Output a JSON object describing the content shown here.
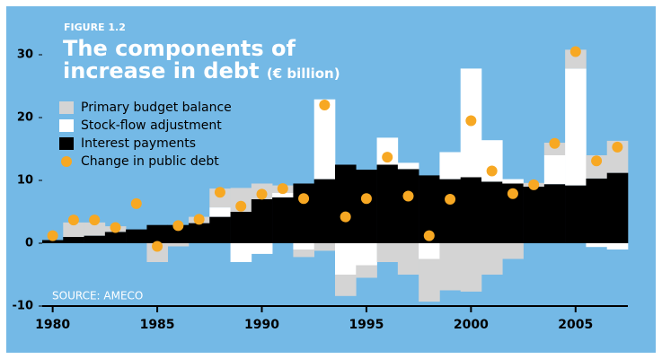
{
  "chart_data": {
    "type": "bar",
    "stacked": true,
    "figure_label": "FIGURE 1.2",
    "title": "The components of increase in debt",
    "unit": "(€ billion)",
    "source": "SOURCE: AMECO",
    "x": [
      1980,
      1981,
      1982,
      1983,
      1984,
      1985,
      1986,
      1987,
      1988,
      1989,
      1990,
      1991,
      1992,
      1993,
      1994,
      1995,
      1996,
      1997,
      1998,
      1999,
      2000,
      2001,
      2002,
      2003,
      2004,
      2005,
      2006,
      2007
    ],
    "xlim": [
      1979.5,
      2007.5
    ],
    "xticks": [
      1980,
      1985,
      1990,
      1995,
      2000,
      2005
    ],
    "ylim": [
      -10,
      33
    ],
    "yticks": [
      -10,
      0,
      10,
      20,
      30
    ],
    "grid": false,
    "legend": "upper left",
    "series": [
      {
        "name": "Primary budget balance",
        "color": "#d4d4d4",
        "values": [
          0,
          2.3,
          2.1,
          0.9,
          0,
          -3,
          -0.5,
          1.0,
          3.0,
          3.8,
          2.5,
          1.2,
          -1.2,
          -1.2,
          -3.4,
          -2.0,
          -3.0,
          -5.0,
          -6.8,
          -7.5,
          -7.7,
          -5.0,
          -2.5,
          0.6,
          2.0,
          3.0,
          3.7,
          5.1
        ]
      },
      {
        "name": "Stock-flow adjustment",
        "color": "#ffffff",
        "values": [
          0,
          0,
          0,
          0,
          0,
          0,
          0,
          0,
          1.5,
          -3.0,
          -1.7,
          0.7,
          -1.0,
          12.7,
          -5.0,
          -3.5,
          4.3,
          1.0,
          -2.5,
          4.3,
          17.3,
          6.6,
          0.7,
          0,
          4.6,
          18.6,
          -0.6,
          -1.0
        ]
      },
      {
        "name": "Interest payments",
        "color": "#000000",
        "values": [
          0.5,
          1.0,
          1.2,
          1.8,
          2.2,
          2.9,
          2.9,
          3.2,
          4.2,
          5.0,
          7.0,
          7.3,
          9.5,
          10.2,
          12.5,
          11.7,
          12.5,
          11.8,
          10.8,
          10.2,
          10.5,
          9.8,
          9.5,
          9.0,
          9.4,
          9.2,
          10.3,
          11.2
        ]
      },
      {
        "name": "Change in public debt",
        "color": "#f7a823",
        "type": "scatter",
        "values": [
          1.2,
          3.7,
          3.7,
          2.5,
          6.3,
          -0.5,
          2.8,
          3.8,
          8.1,
          5.9,
          7.8,
          8.7,
          7.1,
          22.0,
          4.2,
          7.1,
          13.7,
          7.5,
          1.2,
          7.0,
          19.5,
          11.5,
          7.9,
          9.3,
          15.9,
          30.5,
          13.1,
          15.3
        ]
      }
    ]
  }
}
